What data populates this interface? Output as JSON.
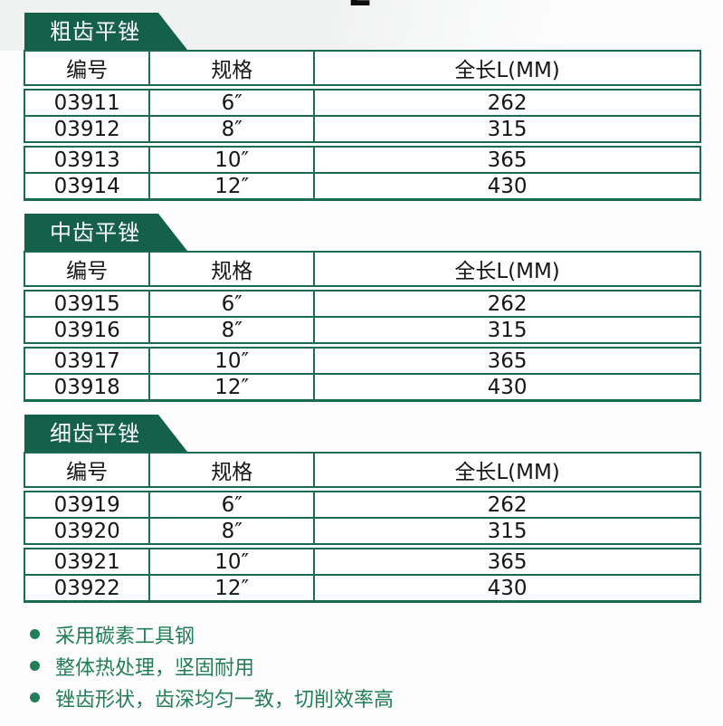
{
  "diagram": {
    "dimension_label": "L"
  },
  "table_columns": [
    "编号",
    "规格",
    "全长L(MM)"
  ],
  "sections": [
    {
      "tab": "粗齿平锉",
      "rows": [
        [
          "03911",
          "6″",
          "262"
        ],
        [
          "03912",
          "8″",
          "315"
        ],
        [
          "03913",
          "10″",
          "365"
        ],
        [
          "03914",
          "12″",
          "430"
        ]
      ]
    },
    {
      "tab": "中齿平锉",
      "rows": [
        [
          "03915",
          "6″",
          "262"
        ],
        [
          "03916",
          "8″",
          "315"
        ],
        [
          "03917",
          "10″",
          "365"
        ],
        [
          "03918",
          "12″",
          "430"
        ]
      ]
    },
    {
      "tab": "细齿平锉",
      "rows": [
        [
          "03919",
          "6″",
          "262"
        ],
        [
          "03920",
          "8″",
          "315"
        ],
        [
          "03921",
          "10″",
          "365"
        ],
        [
          "03922",
          "12″",
          "430"
        ]
      ]
    }
  ],
  "features": [
    "采用碳素工具钢",
    "整体热处理，坚固耐用",
    "锉齿形状，齿深均匀一致，切削效率高"
  ],
  "colors": {
    "tab_green": "#15604a",
    "border_green": "#1b6b54",
    "feature_green": "#217e57"
  }
}
